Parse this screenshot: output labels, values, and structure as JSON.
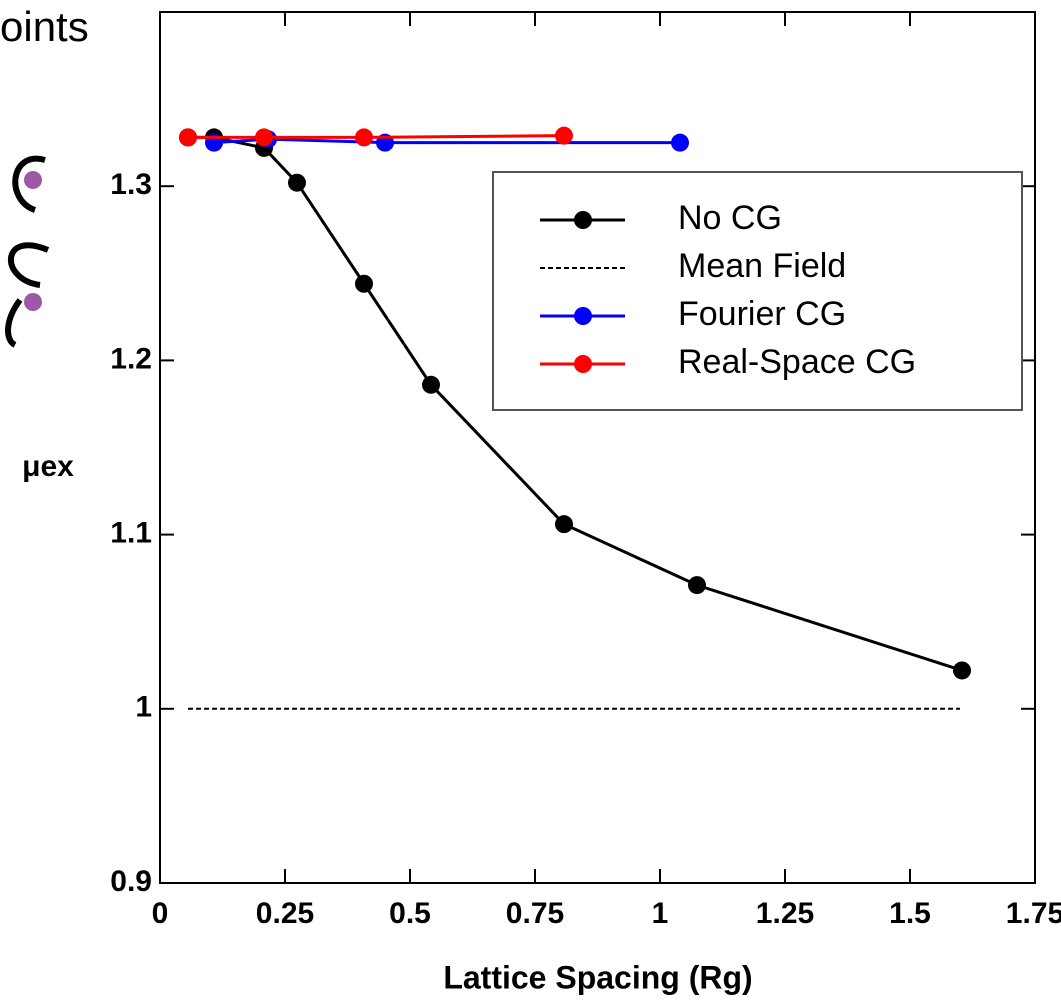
{
  "annotations": [
    "oints"
  ],
  "chart_data": {
    "type": "line",
    "x_label": "Lattice Spacing (Rg)",
    "y_label": "μex",
    "xlim": [
      0,
      1.75
    ],
    "ylim": [
      0.9,
      1.4
    ],
    "xticks": [
      0,
      0.25,
      0.5,
      0.75,
      1,
      1.25,
      1.5,
      1.75
    ],
    "yticks": [
      0.9,
      1,
      1.1,
      1.2,
      1.3
    ],
    "legend": "upper right",
    "series": [
      {
        "name": "No CG",
        "color": "#000000",
        "marker": true,
        "dashed": false,
        "x": [
          0.056,
          0.108,
          0.208,
          0.274,
          0.408,
          0.542,
          0.808,
          1.074,
          1.604
        ],
        "values": [
          1.328,
          1.328,
          1.322,
          1.302,
          1.244,
          1.186,
          1.106,
          1.071,
          1.022
        ]
      },
      {
        "name": "Mean Field",
        "color": "#000000",
        "marker": false,
        "dashed": true,
        "x": [
          0.056,
          1.6
        ],
        "values": [
          1,
          1
        ]
      },
      {
        "name": "Fourier CG",
        "color": "#0000ff",
        "marker": true,
        "dashed": false,
        "x": [
          0.108,
          0.216,
          0.45,
          1.04
        ],
        "values": [
          1.325,
          1.327,
          1.325,
          1.325
        ]
      },
      {
        "name": "Real-Space CG",
        "color": "#ff0000",
        "marker": true,
        "dashed": false,
        "x": [
          0.056,
          0.208,
          0.408,
          0.808
        ],
        "values": [
          1.328,
          1.328,
          1.328,
          1.329
        ]
      }
    ]
  }
}
